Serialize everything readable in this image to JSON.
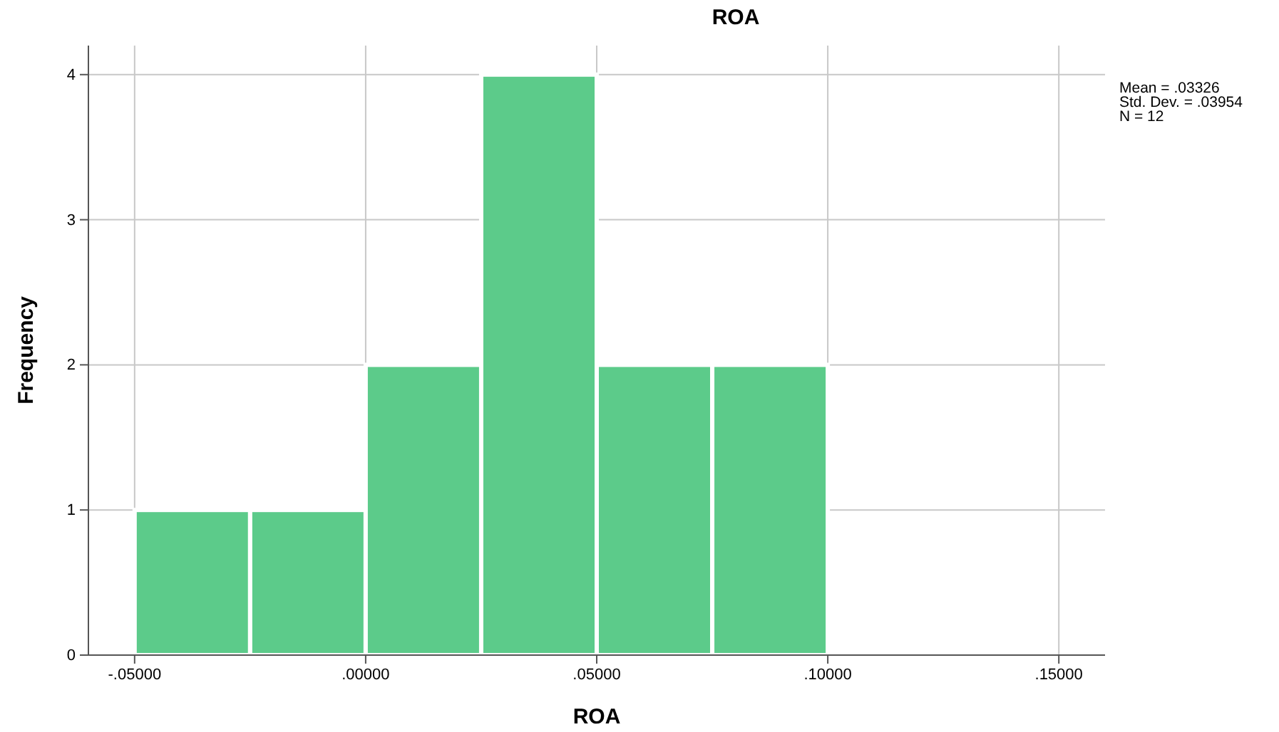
{
  "chart_data": {
    "type": "histogram",
    "title": "ROA",
    "xlabel": "ROA",
    "ylabel": "Frequency",
    "bins": [
      -0.05,
      -0.025,
      0,
      0.025,
      0.05,
      0.075,
      0.1
    ],
    "values": [
      1,
      1,
      2,
      4,
      2,
      2
    ],
    "color": "#5ccb8a",
    "xlim": [
      -0.06,
      0.16
    ],
    "xticks": [
      {
        "value": -0.05,
        "label": "-.05000"
      },
      {
        "value": 0,
        "label": ".00000"
      },
      {
        "value": 0.05,
        "label": ".05000"
      },
      {
        "value": 0.1,
        "label": ".10000"
      },
      {
        "value": 0.15,
        "label": ".15000"
      }
    ],
    "ylim": [
      0,
      4.2
    ],
    "yticks": [
      0,
      1,
      2,
      3,
      4
    ],
    "grid": true,
    "annotations": [
      "Mean = .03326",
      "Std. Dev. = .03954",
      "N = 12"
    ]
  }
}
